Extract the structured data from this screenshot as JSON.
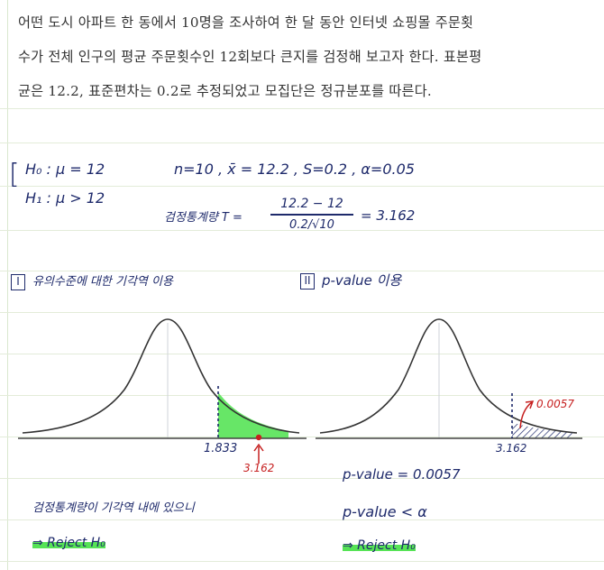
{
  "problem": {
    "lines": [
      "어떤 도시 아파트 한 동에서 10명을 조사하여 한 달 동안 인터넷 쇼핑몰 주문횟",
      "수가 전체 인구의 평균 주문횟수인 12회보다 큰지를 검정해 보고자 한다. 표본평",
      "균은 12.2, 표준편차는 0.2로 추정되었고 모집단은 정규분포를 따른다."
    ]
  },
  "notes": {
    "hypotheses": {
      "bracket": "[",
      "h0": "H₀ : μ = 12",
      "h1": "H₁ : μ > 12"
    },
    "givens": "n=10 , x̄ = 12.2 , S=0.2 , α=0.05",
    "test_stat": {
      "label": "검정통계량 T =",
      "numerator": "12.2 − 12",
      "denominator": "0.2/√10",
      "result": "= 3.162"
    },
    "method1": {
      "number": "I",
      "title": "유의수준에 대한 기각역 이용",
      "critical_value": "1.833",
      "statistic_value": "3.162",
      "conclusion_text": "검정통계량이 기각역 내에 있으니",
      "decision": "⇒ Reject H₀"
    },
    "method2": {
      "number": "II",
      "title": "p-value 이용",
      "p_annotation": "0.0057",
      "statistic_value": "3.162",
      "p_value_line": "p-value = 0.0057",
      "compare_line": "p-value < α",
      "decision": "⇒ Reject H₀"
    }
  },
  "colors": {
    "ink": "#1e2a6b",
    "red": "#c62020",
    "highlight_green": "#56e356",
    "ruled": "#e3ecd9"
  }
}
